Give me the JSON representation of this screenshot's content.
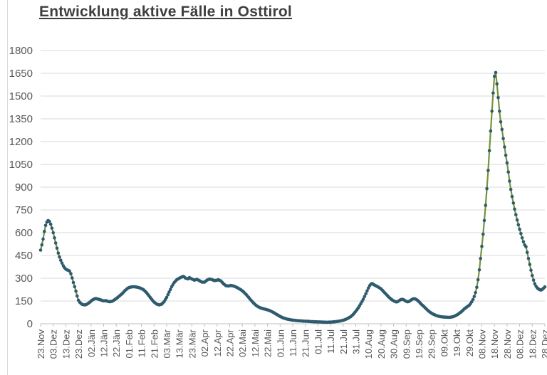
{
  "window": {
    "background": "#ffffff",
    "edge_line_color": "#d9d9d9"
  },
  "chart_data": {
    "type": "line",
    "title": "Entwicklung aktive Fälle in Osttirol",
    "xlabel": "",
    "ylabel": "",
    "legend": "none",
    "grid": "horizontal",
    "colors": {
      "line": "#76933C",
      "marker": "#2E5B6E",
      "gridline": "#D9D9D9",
      "axis": "#BFBFBF",
      "tick_text": "#595959",
      "title_text": "#3F3F3F"
    },
    "y_axis": {
      "min": 0,
      "max": 1800,
      "step": 150,
      "tick_labels": [
        "0",
        "150",
        "300",
        "450",
        "600",
        "750",
        "900",
        "1050",
        "1200",
        "1350",
        "1500",
        "1650",
        "1800"
      ]
    },
    "x_axis": {
      "days_per_tick": 10,
      "tick_labels": [
        "23.Nov",
        "03.Dez",
        "13.Dez",
        "23.Dez",
        "02.Jän",
        "12.Jän",
        "22.Jän",
        "01.Feb",
        "11.Feb",
        "21.Feb",
        "03.Mär",
        "13.Mär",
        "23.Mär",
        "02.Apr",
        "12.Apr",
        "22.Apr",
        "02.Mai",
        "12.Mai",
        "22.Mai",
        "01.Jun",
        "11.Jun",
        "21.Jun",
        "01.Jul",
        "11.Jul",
        "21.Jul",
        "31.Jul",
        "10.Aug",
        "20.Aug",
        "30.Aug",
        "09.Sep",
        "19.Sep",
        "29.Sep",
        "09.Okt",
        "19.Okt",
        "29.Okt",
        "08.Nov",
        "18.Nov",
        "28.Nov",
        "08.Dez",
        "18.Dez",
        "28.Dez"
      ]
    },
    "series": [
      {
        "name": "aktive Fälle",
        "sampling": "daily points; values below are [day_offset_from_23.Nov, active_cases] keypoints read off the chart, intermediate days linearly interpolated",
        "keypoints": [
          [
            0,
            485
          ],
          [
            1,
            520
          ],
          [
            2,
            558
          ],
          [
            3,
            608
          ],
          [
            4,
            648
          ],
          [
            5,
            670
          ],
          [
            6,
            680
          ],
          [
            7,
            674
          ],
          [
            8,
            656
          ],
          [
            9,
            630
          ],
          [
            10,
            600
          ],
          [
            11,
            566
          ],
          [
            12,
            532
          ],
          [
            13,
            498
          ],
          [
            14,
            466
          ],
          [
            15,
            440
          ],
          [
            16,
            418
          ],
          [
            17,
            400
          ],
          [
            18,
            382
          ],
          [
            19,
            369
          ],
          [
            20,
            360
          ],
          [
            21,
            355
          ],
          [
            22,
            352
          ],
          [
            23,
            347
          ],
          [
            24,
            330
          ],
          [
            25,
            302
          ],
          [
            26,
            272
          ],
          [
            27,
            244
          ],
          [
            28,
            215
          ],
          [
            29,
            183
          ],
          [
            30,
            155
          ],
          [
            31,
            142
          ],
          [
            32,
            134
          ],
          [
            33,
            128
          ],
          [
            34,
            125
          ],
          [
            35,
            124
          ],
          [
            36,
            126
          ],
          [
            37,
            130
          ],
          [
            38,
            136
          ],
          [
            39,
            142
          ],
          [
            40,
            149
          ],
          [
            41,
            156
          ],
          [
            42,
            161
          ],
          [
            43,
            165
          ],
          [
            44,
            166
          ],
          [
            45,
            164
          ],
          [
            47,
            159
          ],
          [
            49,
            153
          ],
          [
            50,
            151
          ],
          [
            52,
            152
          ],
          [
            53,
            148
          ],
          [
            55,
            145
          ],
          [
            57,
            149
          ],
          [
            59,
            160
          ],
          [
            61,
            172
          ],
          [
            63,
            186
          ],
          [
            65,
            201
          ],
          [
            67,
            219
          ],
          [
            69,
            233
          ],
          [
            70,
            238
          ],
          [
            72,
            243
          ],
          [
            74,
            244
          ],
          [
            76,
            242
          ],
          [
            78,
            238
          ],
          [
            80,
            232
          ],
          [
            82,
            222
          ],
          [
            84,
            205
          ],
          [
            86,
            184
          ],
          [
            88,
            162
          ],
          [
            90,
            143
          ],
          [
            92,
            130
          ],
          [
            94,
            124
          ],
          [
            96,
            129
          ],
          [
            98,
            146
          ],
          [
            100,
            174
          ],
          [
            102,
            209
          ],
          [
            104,
            244
          ],
          [
            106,
            272
          ],
          [
            108,
            290
          ],
          [
            110,
            300
          ],
          [
            112,
            308
          ],
          [
            113,
            312
          ],
          [
            114,
            308
          ],
          [
            115,
            300
          ],
          [
            117,
            296
          ],
          [
            118,
            304
          ],
          [
            120,
            295
          ],
          [
            122,
            287
          ],
          [
            124,
            293
          ],
          [
            126,
            284
          ],
          [
            128,
            274
          ],
          [
            130,
            274
          ],
          [
            132,
            287
          ],
          [
            134,
            295
          ],
          [
            136,
            291
          ],
          [
            138,
            284
          ],
          [
            140,
            287
          ],
          [
            141,
            290
          ],
          [
            143,
            282
          ],
          [
            145,
            264
          ],
          [
            147,
            251
          ],
          [
            149,
            249
          ],
          [
            151,
            252
          ],
          [
            153,
            249
          ],
          [
            155,
            242
          ],
          [
            157,
            233
          ],
          [
            159,
            223
          ],
          [
            161,
            210
          ],
          [
            163,
            193
          ],
          [
            165,
            174
          ],
          [
            167,
            154
          ],
          [
            169,
            136
          ],
          [
            171,
            121
          ],
          [
            173,
            110
          ],
          [
            175,
            103
          ],
          [
            177,
            98
          ],
          [
            179,
            94
          ],
          [
            181,
            89
          ],
          [
            183,
            82
          ],
          [
            185,
            73
          ],
          [
            187,
            63
          ],
          [
            189,
            53
          ],
          [
            191,
            44
          ],
          [
            193,
            37
          ],
          [
            195,
            32
          ],
          [
            197,
            28
          ],
          [
            199,
            25
          ],
          [
            201,
            23
          ],
          [
            203,
            21
          ],
          [
            206,
            19
          ],
          [
            209,
            17
          ],
          [
            212,
            16
          ],
          [
            215,
            14
          ],
          [
            218,
            13
          ],
          [
            221,
            12
          ],
          [
            224,
            11
          ],
          [
            227,
            10
          ],
          [
            230,
            11
          ],
          [
            232,
            12
          ],
          [
            234,
            14
          ],
          [
            236,
            16
          ],
          [
            238,
            19
          ],
          [
            240,
            23
          ],
          [
            242,
            29
          ],
          [
            244,
            37
          ],
          [
            246,
            47
          ],
          [
            248,
            62
          ],
          [
            250,
            82
          ],
          [
            252,
            105
          ],
          [
            254,
            132
          ],
          [
            256,
            162
          ],
          [
            258,
            198
          ],
          [
            260,
            235
          ],
          [
            261,
            251
          ],
          [
            262,
            261
          ],
          [
            263,
            265
          ],
          [
            264,
            259
          ],
          [
            266,
            250
          ],
          [
            268,
            241
          ],
          [
            270,
            230
          ],
          [
            272,
            213
          ],
          [
            274,
            195
          ],
          [
            276,
            177
          ],
          [
            278,
            162
          ],
          [
            280,
            151
          ],
          [
            281,
            147
          ],
          [
            282,
            144
          ],
          [
            283,
            145
          ],
          [
            284,
            150
          ],
          [
            285,
            156
          ],
          [
            286,
            160
          ],
          [
            287,
            161
          ],
          [
            288,
            158
          ],
          [
            289,
            153
          ],
          [
            290,
            148
          ],
          [
            291,
            145
          ],
          [
            292,
            146
          ],
          [
            293,
            151
          ],
          [
            294,
            157
          ],
          [
            295,
            162
          ],
          [
            296,
            165
          ],
          [
            297,
            164
          ],
          [
            298,
            160
          ],
          [
            299,
            154
          ],
          [
            300,
            147
          ],
          [
            301,
            138
          ],
          [
            302,
            129
          ],
          [
            304,
            114
          ],
          [
            306,
            97
          ],
          [
            308,
            82
          ],
          [
            310,
            70
          ],
          [
            312,
            61
          ],
          [
            314,
            54
          ],
          [
            316,
            49
          ],
          [
            318,
            46
          ],
          [
            320,
            44
          ],
          [
            322,
            43
          ],
          [
            324,
            42
          ],
          [
            326,
            44
          ],
          [
            328,
            49
          ],
          [
            330,
            57
          ],
          [
            332,
            68
          ],
          [
            334,
            81
          ],
          [
            336,
            97
          ],
          [
            338,
            110
          ],
          [
            340,
            122
          ],
          [
            341,
            132
          ],
          [
            342,
            145
          ],
          [
            343,
            160
          ],
          [
            344,
            180
          ],
          [
            345,
            205
          ],
          [
            346,
            240
          ],
          [
            347,
            290
          ],
          [
            348,
            355
          ],
          [
            349,
            430
          ],
          [
            350,
            510
          ],
          [
            351,
            590
          ],
          [
            352,
            680
          ],
          [
            353,
            780
          ],
          [
            354,
            890
          ],
          [
            355,
            1010
          ],
          [
            356,
            1140
          ],
          [
            357,
            1270
          ],
          [
            358,
            1400
          ],
          [
            359,
            1520
          ],
          [
            360,
            1630
          ],
          [
            361,
            1655
          ],
          [
            362,
            1580
          ],
          [
            363,
            1490
          ],
          [
            364,
            1400
          ],
          [
            365,
            1330
          ],
          [
            366,
            1280
          ],
          [
            367,
            1220
          ],
          [
            368,
            1165
          ],
          [
            369,
            1110
          ],
          [
            370,
            1060
          ],
          [
            371,
            1000
          ],
          [
            372,
            940
          ],
          [
            373,
            885
          ],
          [
            374,
            838
          ],
          [
            375,
            795
          ],
          [
            376,
            755
          ],
          [
            377,
            718
          ],
          [
            378,
            684
          ],
          [
            379,
            652
          ],
          [
            380,
            622
          ],
          [
            381,
            594
          ],
          [
            382,
            566
          ],
          [
            383,
            540
          ],
          [
            384,
            519
          ],
          [
            385,
            507
          ],
          [
            386,
            470
          ],
          [
            387,
            430
          ],
          [
            388,
            391
          ],
          [
            389,
            353
          ],
          [
            390,
            318
          ],
          [
            391,
            288
          ],
          [
            392,
            264
          ],
          [
            393,
            247
          ],
          [
            394,
            236
          ],
          [
            395,
            229
          ],
          [
            396,
            224
          ],
          [
            397,
            222
          ],
          [
            398,
            227
          ],
          [
            399,
            235
          ],
          [
            400,
            243
          ]
        ]
      }
    ]
  }
}
